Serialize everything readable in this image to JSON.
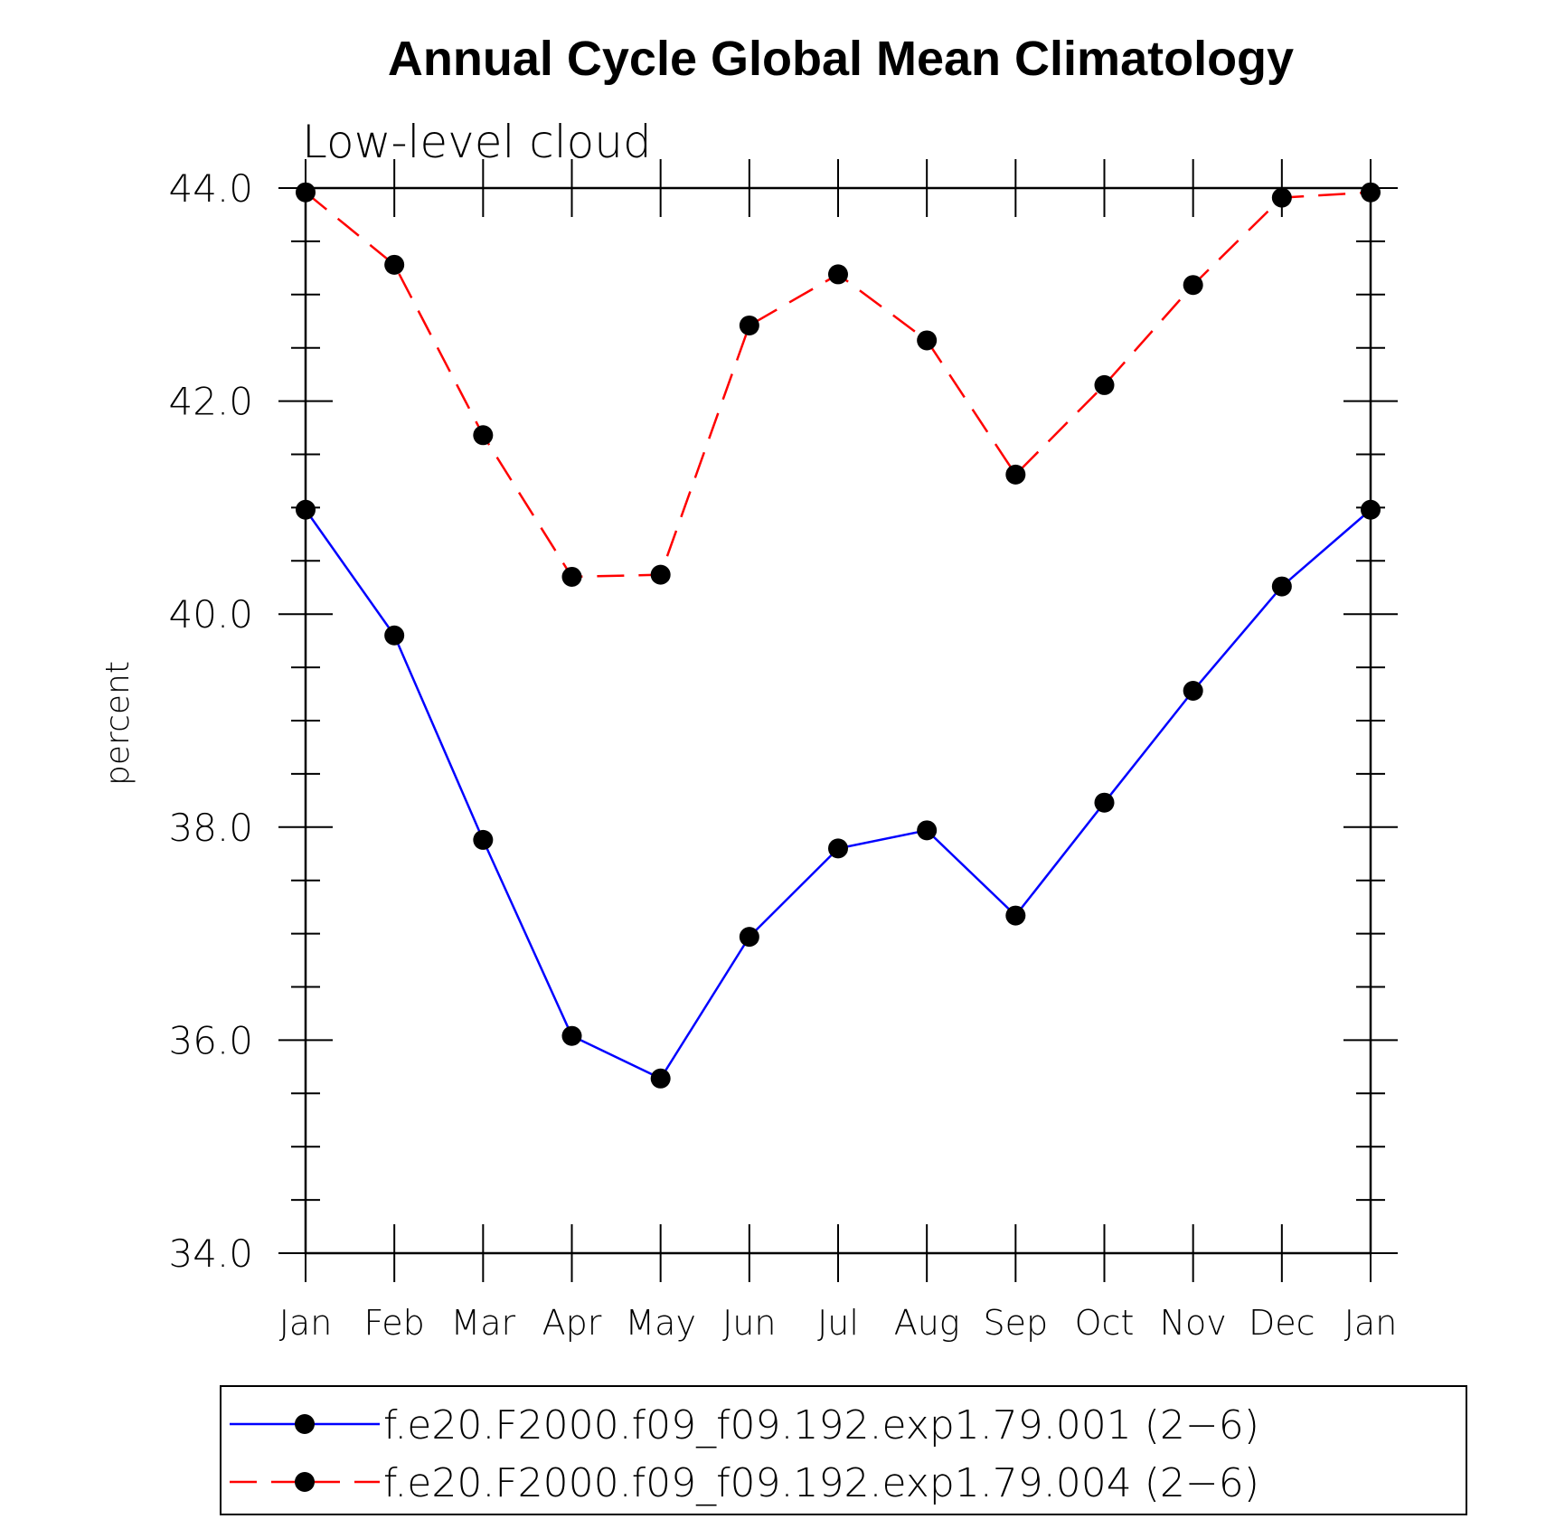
{
  "chart_data": {
    "type": "line",
    "title": "Annual Cycle Global Mean Climatology",
    "subtitle": "Low-level cloud",
    "ylabel": "percent",
    "xlabel": "",
    "categories": [
      "Jan",
      "Feb",
      "Mar",
      "Apr",
      "May",
      "Jun",
      "Jul",
      "Aug",
      "Sep",
      "Oct",
      "Nov",
      "Dec",
      "Jan"
    ],
    "ylim": [
      34.0,
      44.0
    ],
    "yticks": [
      "34.0",
      "36.0",
      "38.0",
      "40.0",
      "42.0",
      "44.0"
    ],
    "grid": false,
    "legend_position": "bottom",
    "series": [
      {
        "name": "f.e20.F2000.f09_f09.192.exp1.79.001 (2−6)",
        "color": "#0000ff",
        "dash": "solid",
        "marker": "filled-circle",
        "values": [
          40.98,
          39.8,
          37.88,
          36.04,
          35.64,
          36.97,
          37.8,
          37.97,
          37.17,
          38.23,
          39.28,
          40.26,
          40.98
        ]
      },
      {
        "name": "f.e20.F2000.f09_f09.192.exp1.79.004 (2−6)",
        "color": "#ff0000",
        "dash": "dashed",
        "marker": "filled-circle",
        "values": [
          43.96,
          43.28,
          41.68,
          40.35,
          40.37,
          42.71,
          43.19,
          42.57,
          41.31,
          42.15,
          43.09,
          43.91,
          43.96
        ]
      }
    ]
  }
}
